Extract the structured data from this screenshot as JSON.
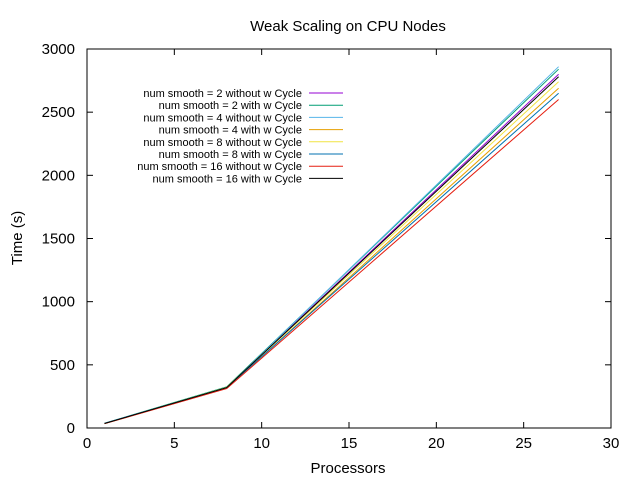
{
  "chart_data": {
    "type": "line",
    "title": "Weak Scaling on CPU Nodes",
    "xlabel": "Processors",
    "ylabel": "Time (s)",
    "xlim": [
      0,
      30
    ],
    "ylim": [
      0,
      3000
    ],
    "x_ticks": [
      0,
      5,
      10,
      15,
      20,
      25,
      30
    ],
    "y_ticks": [
      0,
      500,
      1000,
      1500,
      2000,
      2500,
      3000
    ],
    "grid": false,
    "legend_position": "top-left",
    "x": [
      1,
      8,
      27
    ],
    "series": [
      {
        "name": "num smooth = 2 without w Cycle",
        "color": "#9400d3",
        "values": [
          36,
          320,
          2800
        ]
      },
      {
        "name": "num smooth = 2 with w Cycle",
        "color": "#009e73",
        "values": [
          38,
          325,
          2840
        ]
      },
      {
        "name": "num smooth = 4 without w Cycle",
        "color": "#56b4e9",
        "values": [
          37,
          318,
          2860
        ]
      },
      {
        "name": "num smooth = 4 with w Cycle",
        "color": "#e69f00",
        "values": [
          35,
          315,
          2690
        ]
      },
      {
        "name": "num smooth = 8 without w Cycle",
        "color": "#f0e442",
        "values": [
          36,
          322,
          2740
        ]
      },
      {
        "name": "num smooth = 8 with w Cycle",
        "color": "#0072b2",
        "values": [
          37,
          319,
          2650
        ]
      },
      {
        "name": "num smooth = 16 without w Cycle",
        "color": "#e51e10",
        "values": [
          34,
          312,
          2600
        ]
      },
      {
        "name": "num smooth = 16 with w Cycle",
        "color": "#000000",
        "values": [
          36,
          320,
          2780
        ]
      }
    ]
  }
}
